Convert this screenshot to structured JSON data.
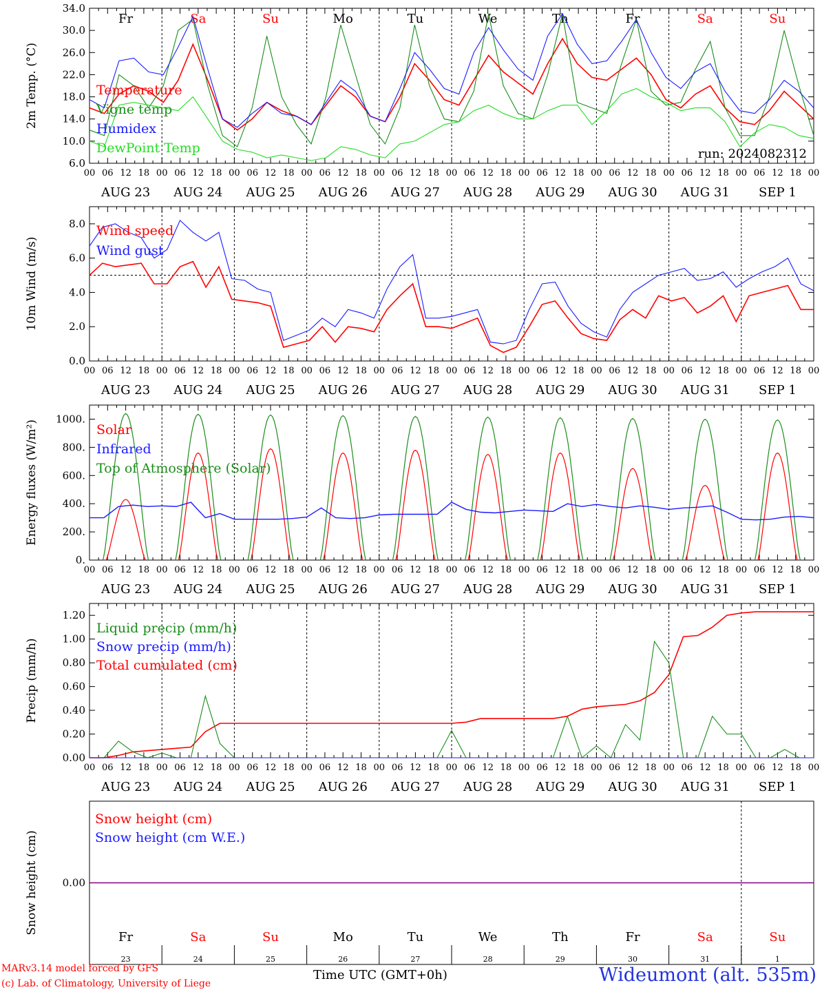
{
  "colors": {
    "red": "#ff0000",
    "green": "#1a8c1a",
    "blue": "#1a1aff",
    "lime": "#22dd22",
    "purple": "#800080",
    "weekend": "#ff0000",
    "weekday": "#000000"
  },
  "days": [
    {
      "abbr": "Fr",
      "date": "AUG 23",
      "num": "23",
      "weekend": false
    },
    {
      "abbr": "Sa",
      "date": "AUG 24",
      "num": "24",
      "weekend": true
    },
    {
      "abbr": "Su",
      "date": "AUG 25",
      "num": "25",
      "weekend": true
    },
    {
      "abbr": "Mo",
      "date": "AUG 26",
      "num": "26",
      "weekend": false
    },
    {
      "abbr": "Tu",
      "date": "AUG 27",
      "num": "27",
      "weekend": false
    },
    {
      "abbr": "We",
      "date": "AUG 28",
      "num": "28",
      "weekend": false
    },
    {
      "abbr": "Th",
      "date": "AUG 29",
      "num": "29",
      "weekend": false
    },
    {
      "abbr": "Fr",
      "date": "AUG 30",
      "num": "30",
      "weekend": false
    },
    {
      "abbr": "Sa",
      "date": "AUG 31",
      "num": "31",
      "weekend": true
    },
    {
      "abbr": "Su",
      "date": "SEP  1",
      "num": "1",
      "weekend": true
    }
  ],
  "hour_labels": [
    "00",
    "06",
    "12",
    "18"
  ],
  "footer": {
    "credit_line1": "MARv3.14 model forced by GFS",
    "credit_line2": "(c) Lab. of Climatology, University of Liege",
    "time_label": "Time UTC (GMT+0h)",
    "station": "Wideumont (alt. 535m)"
  },
  "chart_data": [
    {
      "type": "line",
      "ylabel": "2m Temp. (°C)",
      "ylim": [
        6,
        34
      ],
      "yticks": [
        "6.0",
        "10.0",
        "14.0",
        "18.0",
        "22.0",
        "26.0",
        "30.0",
        "34.0"
      ],
      "ytick_values": [
        6,
        10,
        14,
        18,
        22,
        26,
        30,
        34
      ],
      "annotation": "run: 2024082312",
      "legend": [
        "Temperature",
        "Vigne temp",
        "Humidex",
        "DewPoint Temp"
      ],
      "series": [
        {
          "name": "Temperature",
          "color": "red",
          "values": [
            16.0,
            15.0,
            18.5,
            20.0,
            19.0,
            17.0,
            21.0,
            27.5,
            21.0,
            14.0,
            12.0,
            14.0,
            17.0,
            15.5,
            14.5,
            13.0,
            16.5,
            20.0,
            18.0,
            14.5,
            13.5,
            18.0,
            24.0,
            21.0,
            17.5,
            16.5,
            21.0,
            25.5,
            22.5,
            20.5,
            18.5,
            24.0,
            28.5,
            24.0,
            21.5,
            21.0,
            23.0,
            25.0,
            22.0,
            17.5,
            16.0,
            18.5,
            20.0,
            16.0,
            13.5,
            13.0,
            15.5,
            19.0,
            16.5,
            14.0
          ]
        },
        {
          "name": "Vigne temp",
          "color": "green",
          "values": [
            12.0,
            11.0,
            22.0,
            20.0,
            16.0,
            20.0,
            30.0,
            32.0,
            20.0,
            11.0,
            9.0,
            16.0,
            29.0,
            18.0,
            13.0,
            9.5,
            18.0,
            31.0,
            22.0,
            13.0,
            9.5,
            16.0,
            31.0,
            20.0,
            14.0,
            13.5,
            19.0,
            33.0,
            20.0,
            15.0,
            14.0,
            22.0,
            33.0,
            17.0,
            16.0,
            15.0,
            24.0,
            32.0,
            19.0,
            16.5,
            17.0,
            23.0,
            28.0,
            16.0,
            11.0,
            11.0,
            18.0,
            30.0,
            20.0,
            11.0
          ]
        },
        {
          "name": "Humidex",
          "color": "blue",
          "values": [
            17.5,
            16.0,
            24.5,
            25.0,
            22.5,
            22.0,
            27.0,
            32.5,
            23.0,
            14.0,
            12.5,
            15.0,
            17.0,
            15.0,
            14.5,
            13.0,
            17.0,
            21.0,
            19.0,
            14.5,
            13.5,
            19.5,
            26.0,
            23.0,
            19.5,
            18.5,
            26.0,
            30.5,
            26.5,
            23.0,
            21.0,
            29.0,
            33.0,
            27.5,
            24.0,
            24.5,
            28.0,
            32.0,
            26.0,
            21.5,
            19.5,
            22.5,
            24.0,
            19.0,
            15.5,
            15.0,
            17.5,
            21.0,
            19.0,
            16.0
          ]
        },
        {
          "name": "DewPoint Temp",
          "color": "lime",
          "values": [
            10.0,
            9.0,
            16.5,
            17.0,
            16.5,
            16.0,
            15.5,
            18.0,
            14.0,
            10.0,
            8.5,
            8.0,
            7.0,
            7.5,
            7.0,
            6.5,
            7.0,
            9.0,
            8.5,
            7.5,
            7.0,
            9.5,
            10.0,
            11.5,
            13.0,
            13.5,
            15.5,
            16.5,
            15.0,
            14.0,
            14.0,
            15.5,
            16.5,
            16.5,
            13.0,
            15.5,
            18.5,
            19.5,
            18.0,
            17.0,
            15.5,
            16.0,
            16.0,
            13.5,
            9.0,
            11.5,
            13.0,
            12.5,
            11.0,
            10.5
          ]
        }
      ]
    },
    {
      "type": "line",
      "ylabel": "10m Wind (m/s)",
      "ylim": [
        0,
        9
      ],
      "yticks": [
        "0.0",
        "2.0",
        "4.0",
        "6.0",
        "8.0"
      ],
      "ytick_values": [
        0,
        2,
        4,
        6,
        8
      ],
      "reference_line": 5.0,
      "legend": [
        "Wind speed",
        "Wind gust"
      ],
      "series": [
        {
          "name": "Wind speed",
          "color": "red",
          "values": [
            5.0,
            5.7,
            5.5,
            5.6,
            5.7,
            4.5,
            4.5,
            5.5,
            5.8,
            4.3,
            5.5,
            3.6,
            3.5,
            3.4,
            3.2,
            0.8,
            1.0,
            1.2,
            2.0,
            1.1,
            2.0,
            1.9,
            1.7,
            3.0,
            3.8,
            4.5,
            2.0,
            2.0,
            1.9,
            2.2,
            2.5,
            0.9,
            0.5,
            0.8,
            2.0,
            3.3,
            3.5,
            2.5,
            1.6,
            1.3,
            1.2,
            2.4,
            3.0,
            2.5,
            3.8,
            3.5,
            3.7,
            2.8,
            3.2,
            3.8,
            2.3,
            3.8,
            4.0,
            4.2,
            4.4,
            3.0,
            3.0
          ]
        },
        {
          "name": "Wind gust",
          "color": "blue",
          "values": [
            6.7,
            7.8,
            8.0,
            7.5,
            7.2,
            6.0,
            6.5,
            8.2,
            7.5,
            7.0,
            7.5,
            4.8,
            4.7,
            4.2,
            4.0,
            1.2,
            1.5,
            1.8,
            2.5,
            2.0,
            3.0,
            2.8,
            2.5,
            4.2,
            5.5,
            6.2,
            2.5,
            2.5,
            2.6,
            2.8,
            3.0,
            1.1,
            1.0,
            1.2,
            3.0,
            4.5,
            4.6,
            3.2,
            2.2,
            1.7,
            1.4,
            3.0,
            4.0,
            4.5,
            5.0,
            5.2,
            5.4,
            4.7,
            4.8,
            5.2,
            4.3,
            4.8,
            5.2,
            5.5,
            6.0,
            4.5,
            4.1
          ]
        }
      ]
    },
    {
      "type": "line",
      "ylabel": "Energy fluxes (W/m²)",
      "ylim": [
        0,
        1100
      ],
      "yticks": [
        "0.",
        "200.",
        "400.",
        "600.",
        "800.",
        "1000."
      ],
      "ytick_values": [
        0,
        200,
        400,
        600,
        800,
        1000
      ],
      "legend": [
        "Solar",
        "Infrared",
        "Top of Atmosphere (Solar)"
      ],
      "toa_peaks": [
        1040,
        1035,
        1030,
        1025,
        1020,
        1015,
        1010,
        1005,
        1000,
        995
      ],
      "solar_peaks": [
        430,
        760,
        790,
        760,
        780,
        750,
        760,
        650,
        530,
        760
      ],
      "series": [
        {
          "name": "Infrared",
          "color": "blue",
          "values": [
            300,
            300,
            380,
            390,
            380,
            385,
            380,
            410,
            300,
            330,
            290,
            290,
            290,
            290,
            295,
            305,
            370,
            300,
            295,
            300,
            320,
            325,
            325,
            325,
            325,
            410,
            360,
            340,
            335,
            345,
            355,
            350,
            345,
            400,
            380,
            395,
            380,
            370,
            385,
            375,
            360,
            370,
            375,
            385,
            340,
            290,
            285,
            290,
            305,
            310,
            300
          ]
        }
      ]
    },
    {
      "type": "line",
      "ylabel": "Precip (mm/h)",
      "ylim": [
        0,
        1.3
      ],
      "yticks": [
        "0.00",
        "0.20",
        "0.40",
        "0.60",
        "0.80",
        "1.00",
        "1.20"
      ],
      "ytick_values": [
        0,
        0.2,
        0.4,
        0.6,
        0.8,
        1.0,
        1.2
      ],
      "legend": [
        "Liquid precip (mm/h)",
        "Snow precip (mm/h)",
        "Total cumulated (cm)"
      ],
      "series": [
        {
          "name": "Total cumulated (cm)",
          "color": "red",
          "values": [
            0,
            0,
            0.02,
            0.05,
            0.06,
            0.07,
            0.08,
            0.09,
            0.22,
            0.29,
            0.29,
            0.29,
            0.29,
            0.29,
            0.29,
            0.29,
            0.29,
            0.29,
            0.29,
            0.29,
            0.29,
            0.29,
            0.29,
            0.29,
            0.29,
            0.29,
            0.3,
            0.33,
            0.33,
            0.33,
            0.33,
            0.33,
            0.33,
            0.35,
            0.41,
            0.43,
            0.44,
            0.45,
            0.48,
            0.55,
            0.7,
            1.02,
            1.03,
            1.1,
            1.2,
            1.22,
            1.23,
            1.23,
            1.23,
            1.23,
            1.23
          ]
        },
        {
          "name": "Liquid precip (mm/h)",
          "color": "green",
          "values": [
            0,
            0,
            0.14,
            0.05,
            0,
            0.04,
            0,
            0,
            0.52,
            0.12,
            0,
            0,
            0,
            0,
            0,
            0,
            0,
            0,
            0,
            0,
            0,
            0,
            0,
            0,
            0,
            0.23,
            0,
            0,
            0,
            0,
            0,
            0,
            0,
            0.35,
            0,
            0.1,
            0,
            0.28,
            0.15,
            0.98,
            0.8,
            0,
            0,
            0.35,
            0.2,
            0.2,
            0,
            0,
            0.07,
            0,
            0
          ]
        },
        {
          "name": "Snow precip (mm/h)",
          "color": "blue",
          "values": [
            0,
            0,
            0,
            0,
            0,
            0,
            0,
            0,
            0,
            0,
            0,
            0,
            0,
            0,
            0,
            0,
            0,
            0,
            0,
            0,
            0,
            0,
            0,
            0,
            0,
            0,
            0,
            0,
            0,
            0,
            0,
            0,
            0,
            0,
            0,
            0,
            0,
            0,
            0,
            0,
            0,
            0,
            0,
            0,
            0,
            0,
            0,
            0,
            0,
            0,
            0
          ]
        }
      ]
    },
    {
      "type": "line",
      "ylabel": "Snow height (cm)",
      "ylim": [
        -1,
        1
      ],
      "yticks": [
        "0.00"
      ],
      "ytick_values": [
        0
      ],
      "legend": [
        "Snow height (cm)",
        "Snow height (cm W.E.)"
      ],
      "series": [
        {
          "name": "Snow height (cm)",
          "color": "red",
          "values": [
            0,
            0
          ]
        },
        {
          "name": "Snow height (cm W.E.)",
          "color": "blue",
          "values": [
            0,
            0
          ]
        }
      ]
    }
  ]
}
